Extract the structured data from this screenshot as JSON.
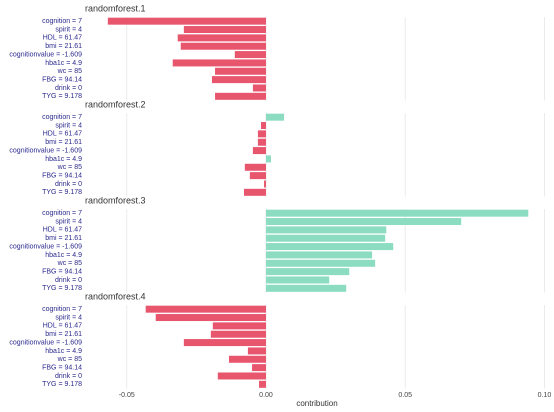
{
  "chart_data": {
    "type": "bar",
    "xlabel": "contribution",
    "xlim": [
      -0.065,
      0.102
    ],
    "xticks": [
      -0.05,
      {
        "value": 0,
        "label": "0.00"
      },
      0.05,
      {
        "value": 0.1,
        "label": "0.10"
      }
    ],
    "grid": true,
    "negative_color": "#e8566e",
    "positive_color": "#8bdcc0",
    "panels": [
      {
        "title": "randomforest.1",
        "categories": [
          "cognition = 7",
          "spirit = 4",
          "HDL = 61.47",
          "bmi = 21.61",
          "cognitionvalue = -1.609",
          "hba1c = 4.9",
          "wc = 85",
          "FBG = 94.14",
          "drink = 0",
          "TYG = 9.178"
        ],
        "values": [
          -0.0568,
          -0.0295,
          -0.0317,
          -0.0306,
          -0.0112,
          -0.0335,
          -0.0183,
          -0.0194,
          -0.0047,
          -0.0183
        ]
      },
      {
        "title": "randomforest.2",
        "categories": [
          "cognition = 7",
          "spirit = 4",
          "HDL = 61.47",
          "bmi = 21.61",
          "cognitionvalue = -1.609",
          "hba1c = 4.9",
          "wc = 85",
          "FBG = 94.14",
          "drink = 0",
          "TYG = 9.178"
        ],
        "values": [
          0.0065,
          -0.0018,
          -0.0029,
          -0.0029,
          -0.0047,
          0.0018,
          -0.0076,
          -0.0058,
          -0.0007,
          -0.0079
        ]
      },
      {
        "title": "randomforest.3",
        "categories": [
          "cognition = 7",
          "spirit = 4",
          "HDL = 61.47",
          "bmi = 21.61",
          "cognitionvalue = -1.609",
          "hba1c = 4.9",
          "wc = 85",
          "FBG = 94.14",
          "drink = 0",
          "TYG = 9.178"
        ],
        "values": [
          0.0942,
          0.0701,
          0.0432,
          0.0428,
          0.0457,
          0.0381,
          0.0392,
          0.0299,
          0.0227,
          0.0288
        ]
      },
      {
        "title": "randomforest.4",
        "categories": [
          "cognition = 7",
          "spirit = 4",
          "HDL = 61.47",
          "bmi = 21.61",
          "cognitionvalue = -1.609",
          "hba1c = 4.9",
          "wc = 85",
          "FBG = 94.14",
          "drink = 0",
          "TYG = 9.178"
        ],
        "values": [
          -0.0432,
          -0.0396,
          -0.0191,
          -0.0198,
          -0.0295,
          -0.0065,
          -0.0133,
          -0.005,
          -0.0173,
          -0.0025
        ]
      }
    ]
  }
}
